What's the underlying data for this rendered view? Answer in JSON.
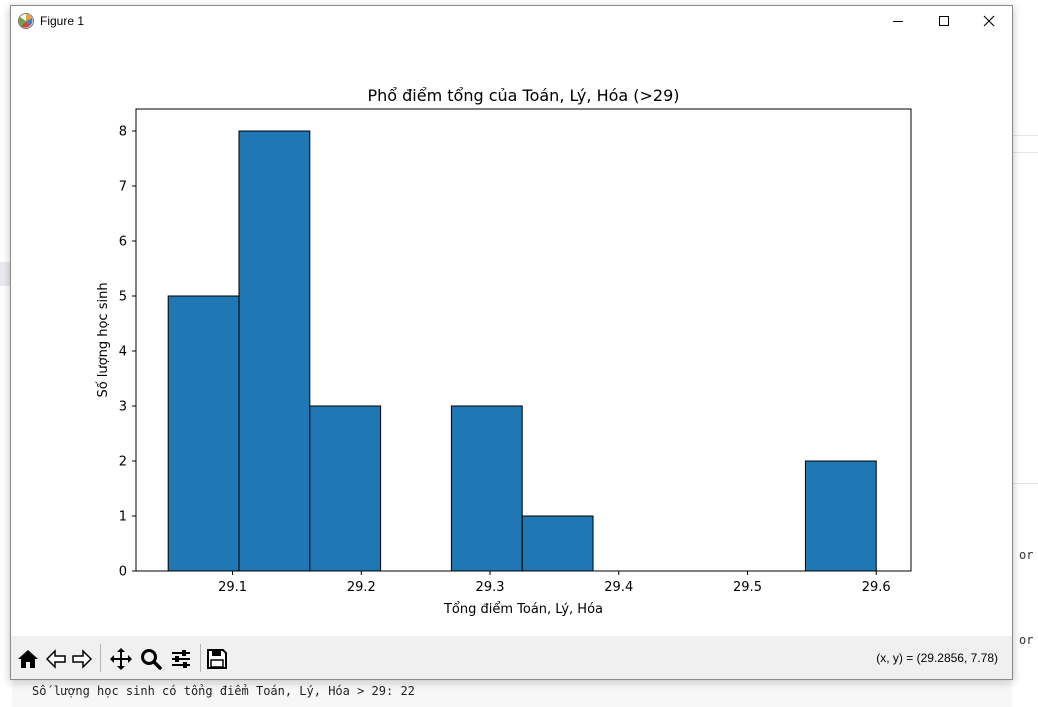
{
  "window": {
    "title": "Figure 1",
    "minimize_icon": "minimize-icon",
    "maximize_icon": "maximize-icon",
    "close_icon": "close-icon"
  },
  "toolbar": {
    "buttons": [
      {
        "name": "home",
        "icon": "home-icon"
      },
      {
        "name": "back",
        "icon": "arrow-left-icon"
      },
      {
        "name": "forward",
        "icon": "arrow-right-icon"
      },
      {
        "name": "pan",
        "icon": "move-icon"
      },
      {
        "name": "zoom",
        "icon": "magnifier-icon"
      },
      {
        "name": "configure-subplots",
        "icon": "sliders-icon"
      },
      {
        "name": "save",
        "icon": "floppy-disk-icon"
      }
    ],
    "coords_text": "(x, y) = (29.2856, 7.78)"
  },
  "background": {
    "console_text": "Số lượng học sinh có tổng điểm Toán, Lý, Hóa > 29: 22",
    "side_text_1": "or",
    "side_text_2": "or"
  },
  "chart_data": {
    "type": "bar",
    "title": "Phổ điểm tổng của Toán, Lý, Hóa (>29)",
    "xlabel": "Tổng điểm Toán, Lý, Hóa",
    "ylabel": "Số lượng học sinh",
    "bin_edges": [
      29.05,
      29.105,
      29.16,
      29.215,
      29.27,
      29.325,
      29.38,
      29.435,
      29.49,
      29.545,
      29.6
    ],
    "values": [
      5,
      8,
      3,
      0,
      3,
      1,
      0,
      0,
      0,
      2
    ],
    "xlim": [
      29.025,
      29.627
    ],
    "ylim": [
      0,
      8.4
    ],
    "xticks": [
      29.1,
      29.2,
      29.3,
      29.4,
      29.5,
      29.6
    ],
    "xtick_labels": [
      "29.1",
      "29.2",
      "29.3",
      "29.4",
      "29.5",
      "29.6"
    ],
    "yticks": [
      0,
      1,
      2,
      3,
      4,
      5,
      6,
      7,
      8
    ],
    "ytick_labels": [
      "0",
      "1",
      "2",
      "3",
      "4",
      "5",
      "6",
      "7",
      "8"
    ],
    "bar_color": "#1f77b4",
    "edge_color": "#000000",
    "grid": false
  }
}
